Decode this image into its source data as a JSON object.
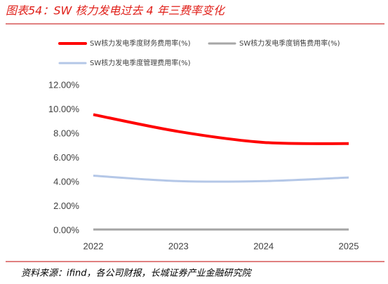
{
  "chart_data": {
    "type": "line",
    "title": "图表54：SW 核力发电过去 4 年三费率变化",
    "source": "资料来源：ifind，各公司财报，长城证券产业金融研究院",
    "categories": [
      "2022",
      "2023",
      "2024",
      "2025"
    ],
    "series": [
      {
        "name": "SW核力发电季度财务费用率(%)",
        "color": "#ff0000",
        "values": [
          9.6,
          8.2,
          7.3,
          7.2
        ]
      },
      {
        "name": "SW核力发电季度销售费用率(%)",
        "color": "#a6a6a6",
        "values": [
          0.1,
          0.1,
          0.1,
          0.1
        ]
      },
      {
        "name": "SW核力发电季度管理费用率(%)",
        "color": "#b4c7e7",
        "values": [
          4.55,
          4.1,
          4.1,
          4.4
        ]
      }
    ],
    "ylim": [
      0,
      12
    ],
    "yticks": [
      {
        "value": 0,
        "label": "0.00%"
      },
      {
        "value": 2,
        "label": "2.00%"
      },
      {
        "value": 4,
        "label": "4.00%"
      },
      {
        "value": 6,
        "label": "6.00%"
      },
      {
        "value": 8,
        "label": "8.00%"
      },
      {
        "value": 10,
        "label": "10.00%"
      },
      {
        "value": 12,
        "label": "12.00%"
      }
    ],
    "grid": false
  }
}
